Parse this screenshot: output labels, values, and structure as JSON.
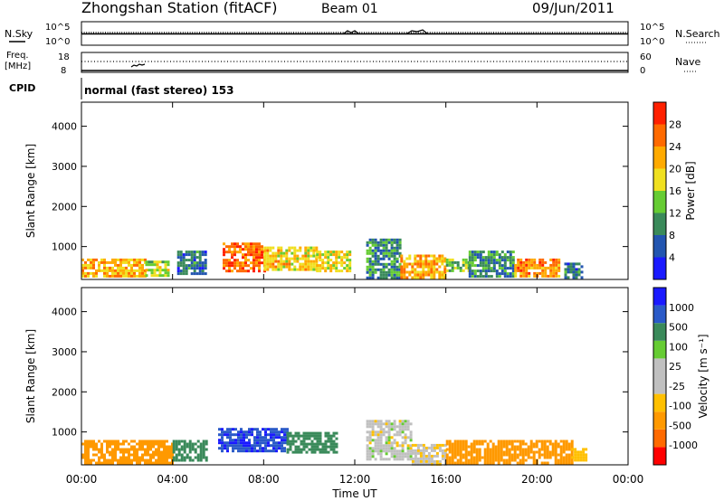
{
  "header": {
    "station_title": "Zhongshan Station (fitACF)",
    "beam_label": "Beam 01",
    "date": "09/Jun/2011"
  },
  "summary_panels": {
    "nsky_label": "N.Sky",
    "nsky_tick_high": "10^5",
    "nsky_tick_low": "10^0",
    "nsearch_label": "N.Search",
    "nsearch_tick_high": "10^5",
    "nsearch_tick_low": "10^0",
    "freq_label_line1": "Freq.",
    "freq_label_line2": "[MHz]",
    "freq_tick_high": "18",
    "freq_tick_low": "8",
    "nave_label": "Nave",
    "nave_tick_high": "60",
    "nave_tick_low": "0",
    "cpid_label": "CPID",
    "cpid_value": "normal (fast stereo) 153"
  },
  "colors": {
    "power_scale": [
      "#1a1aff",
      "#2255b0",
      "#3a8a5a",
      "#66cc33",
      "#f0e020",
      "#ffaa00",
      "#ff6a00",
      "#ff2000"
    ],
    "velocity_scale": [
      "#ff0000",
      "#ff6a00",
      "#ff9900",
      "#ffc000",
      "#c0c0c0",
      "#c0c0c0",
      "#66cc33",
      "#3a8a5a",
      "#2a5ac8",
      "#1a1aff"
    ]
  },
  "chart_data": [
    {
      "type": "heatmap",
      "name": "power",
      "ylabel": "Slant Range [km]",
      "yticks": [
        "1000",
        "2000",
        "3000",
        "4000"
      ],
      "ylim": [
        180,
        4600
      ],
      "colorbar_label": "Power [dB]",
      "colorbar_ticks": [
        "4",
        "8",
        "12",
        "16",
        "20",
        "24",
        "28"
      ],
      "colorbar_range": [
        0,
        32
      ],
      "regions": [
        {
          "t": [
            0.0,
            2.8
          ],
          "r": [
            280,
            700
          ],
          "level": 22
        },
        {
          "t": [
            2.8,
            3.8
          ],
          "r": [
            300,
            650
          ],
          "level": 16
        },
        {
          "t": [
            4.2,
            5.5
          ],
          "r": [
            300,
            900
          ],
          "level": 8
        },
        {
          "t": [
            6.2,
            8.0
          ],
          "r": [
            400,
            1100
          ],
          "level": 26
        },
        {
          "t": [
            8.0,
            10.3
          ],
          "r": [
            450,
            1000
          ],
          "level": 20
        },
        {
          "t": [
            10.3,
            11.8
          ],
          "r": [
            400,
            900
          ],
          "level": 18
        },
        {
          "t": [
            12.5,
            14.0
          ],
          "r": [
            250,
            1200
          ],
          "level": 10
        },
        {
          "t": [
            14.0,
            16.0
          ],
          "r": [
            250,
            800
          ],
          "level": 22
        },
        {
          "t": [
            16.0,
            17.0
          ],
          "r": [
            400,
            700
          ],
          "level": 14
        },
        {
          "t": [
            17.0,
            19.0
          ],
          "r": [
            250,
            900
          ],
          "level": 10
        },
        {
          "t": [
            19.0,
            21.0
          ],
          "r": [
            250,
            700
          ],
          "level": 24
        },
        {
          "t": [
            21.2,
            22.0
          ],
          "r": [
            250,
            600
          ],
          "level": 8
        }
      ]
    },
    {
      "type": "heatmap",
      "name": "velocity",
      "ylabel": "Slant Range [km]",
      "yticks": [
        "1000",
        "2000",
        "3000",
        "4000"
      ],
      "ylim": [
        180,
        4600
      ],
      "colorbar_label": "Velocity [m s⁻¹]",
      "colorbar_ticks": [
        "1000",
        "500",
        "100",
        "25",
        "-25",
        "-100",
        "-500",
        "-1000"
      ],
      "regions": [
        {
          "t": [
            0.0,
            4.0
          ],
          "r": [
            250,
            800
          ],
          "value": -200
        },
        {
          "t": [
            4.0,
            5.5
          ],
          "r": [
            300,
            800
          ],
          "value": 200
        },
        {
          "t": [
            6.0,
            9.0
          ],
          "r": [
            500,
            1100
          ],
          "value": 900
        },
        {
          "t": [
            9.0,
            11.2
          ],
          "r": [
            500,
            1000
          ],
          "value": 300
        },
        {
          "t": [
            12.5,
            14.5
          ],
          "r": [
            300,
            1300
          ],
          "value": 0
        },
        {
          "t": [
            14.5,
            16.0
          ],
          "r": [
            200,
            700
          ],
          "value": -10
        },
        {
          "t": [
            16.0,
            21.5
          ],
          "r": [
            250,
            800
          ],
          "value": -300
        },
        {
          "t": [
            21.5,
            22.2
          ],
          "r": [
            300,
            600
          ],
          "value": -60
        }
      ]
    }
  ],
  "time_axis": {
    "label": "Time UT",
    "ticks": [
      "00:00",
      "04:00",
      "08:00",
      "12:00",
      "16:00",
      "20:00",
      "00:00"
    ]
  }
}
